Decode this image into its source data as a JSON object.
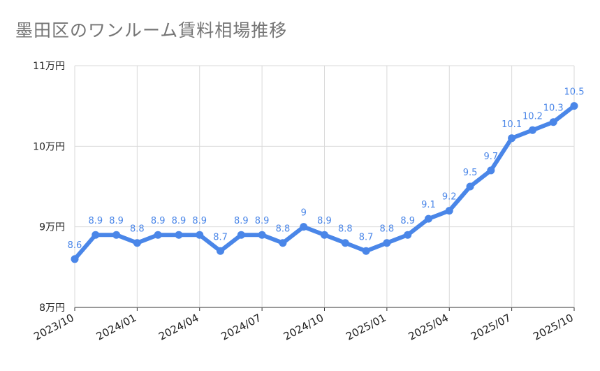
{
  "chart_data": {
    "type": "line",
    "title": "墨田区のワンルーム賃料相場推移",
    "xlabel": "",
    "ylabel": "",
    "x": [
      "2023/10",
      "2023/11",
      "2023/12",
      "2024/01",
      "2024/02",
      "2024/03",
      "2024/04",
      "2024/05",
      "2024/06",
      "2024/07",
      "2024/08",
      "2024/09",
      "2024/10",
      "2024/11",
      "2024/12",
      "2025/01",
      "2025/02",
      "2025/03",
      "2025/04",
      "2025/05",
      "2025/06",
      "2025/07",
      "2025/08",
      "2025/09",
      "2025/10"
    ],
    "x_tick_labels": [
      "2023/10",
      "2024/01",
      "2024/04",
      "2024/07",
      "2024/10",
      "2025/01",
      "2025/04",
      "2025/07",
      "2025/10"
    ],
    "y_tick_labels": [
      "8万円",
      "9万円",
      "10万円",
      "11万円"
    ],
    "y_ticks": [
      8,
      9,
      10,
      11
    ],
    "ylim": [
      8,
      11
    ],
    "grid": true,
    "legend": "none",
    "series": [
      {
        "color": "#4a86e8",
        "values": [
          8.6,
          8.9,
          8.9,
          8.8,
          8.9,
          8.9,
          8.9,
          8.7,
          8.9,
          8.9,
          8.8,
          9,
          8.9,
          8.8,
          8.7,
          8.8,
          8.9,
          9.1,
          9.2,
          9.5,
          9.7,
          10.1,
          10.2,
          10.3,
          10.5
        ],
        "labels": [
          "8.6",
          "8.9",
          "8.9",
          "8.8",
          "8.9",
          "8.9",
          "8.9",
          "8.7",
          "8.9",
          "8.9",
          "8.8",
          "9",
          "8.9",
          "8.8",
          "8.7",
          "8.8",
          "8.9",
          "9.1",
          "9.2",
          "9.5",
          "9.7",
          "10.1",
          "10.2",
          "10.3",
          "10.5"
        ]
      }
    ]
  }
}
